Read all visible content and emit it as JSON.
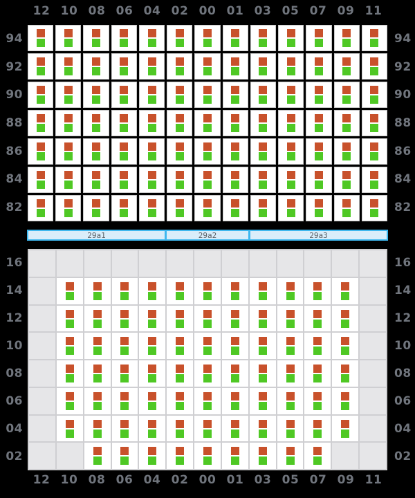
{
  "colors": {
    "background": "#000000",
    "axis_label": "#70757d",
    "cell_border": "#c9c9c9",
    "cell_bg": "#ffffff",
    "panel_inactive": "#e6e6e8",
    "panel_line": "#cfcfd2",
    "container_top": "#c8512b",
    "container_bottom": "#4fc824",
    "hatch_fill": "#d9edfa",
    "hatch_border": "#3eb7ee",
    "hatch_text": "#5b6065"
  },
  "columns": [
    "12",
    "10",
    "08",
    "06",
    "04",
    "02",
    "00",
    "01",
    "03",
    "05",
    "07",
    "09",
    "11"
  ],
  "deck_section": {
    "tiers": [
      "94",
      "92",
      "90",
      "88",
      "86",
      "84",
      "82"
    ],
    "rows": [
      "1111111111111",
      "1111111111111",
      "1111111111111",
      "1111111111111",
      "1111111111111",
      "1111111111111",
      "1111111111111"
    ]
  },
  "hatch_bar": {
    "segments": [
      {
        "label": "29a1",
        "span": 5
      },
      {
        "label": "29a2",
        "span": 3
      },
      {
        "label": "29a3",
        "span": 5
      }
    ]
  },
  "hold_section": {
    "tiers": [
      "16",
      "14",
      "12",
      "10",
      "08",
      "06",
      "04",
      "02"
    ],
    "rows": [
      "0000000000000",
      "0111111111110",
      "0111111111110",
      "0111111111110",
      "0111111111110",
      "0111111111110",
      "0111111111110",
      "0011111111100"
    ]
  }
}
